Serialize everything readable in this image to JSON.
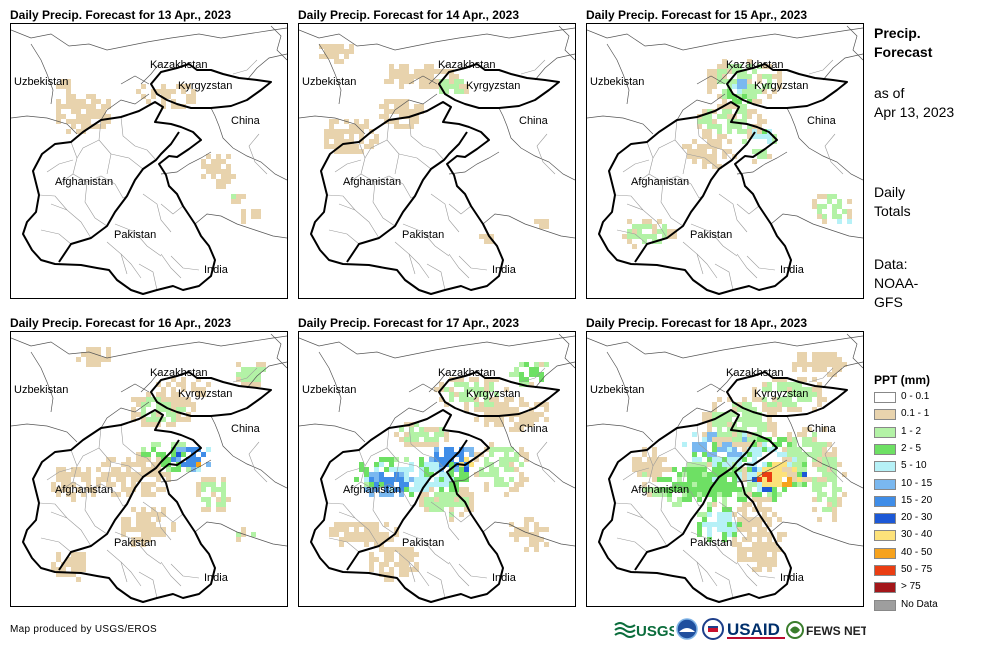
{
  "panels": [
    {
      "title": "Daily Precip. Forecast for 13 Apr., 2023",
      "day": 0
    },
    {
      "title": "Daily Precip. Forecast for 14 Apr., 2023",
      "day": 1
    },
    {
      "title": "Daily Precip. Forecast for 15 Apr., 2023",
      "day": 2
    },
    {
      "title": "Daily Precip. Forecast for 16 Apr., 2023",
      "day": 3
    },
    {
      "title": "Daily Precip. Forecast for 17 Apr., 2023",
      "day": 4
    },
    {
      "title": "Daily Precip. Forecast for 18 Apr., 2023",
      "day": 5
    }
  ],
  "map_labels": {
    "kazakhstan": "Kazakhstan",
    "uzbekistan": "Uzbekistan",
    "kyrgyzstan": "Kyrgyzstan",
    "china": "China",
    "afghanistan": "Afghanistan",
    "pakistan": "Pakistan",
    "india": "India"
  },
  "sidebar": {
    "title_line1": "Precip.",
    "title_line2": "Forecast",
    "asof_line1": "as of",
    "asof_line2": "Apr 13, 2023",
    "daily_line1": "Daily",
    "daily_line2": "Totals",
    "data_line1": "Data:",
    "data_line2": "NOAA-",
    "data_line3": "GFS"
  },
  "legend": {
    "title": "PPT (mm)",
    "items": [
      {
        "label": "0 - 0.1",
        "color": "#ffffff"
      },
      {
        "label": "0.1 - 1",
        "color": "#e8d3ad"
      },
      {
        "label": "1 - 2",
        "color": "#b3f2a6"
      },
      {
        "label": "2 - 5",
        "color": "#6ee064"
      },
      {
        "label": "5 - 10",
        "color": "#b6f1f7"
      },
      {
        "label": "10 - 15",
        "color": "#7ab8f0"
      },
      {
        "label": "15 - 20",
        "color": "#3f8de8"
      },
      {
        "label": "20 - 30",
        "color": "#1c58d6"
      },
      {
        "label": "30 - 40",
        "color": "#fde27a"
      },
      {
        "label": "40 - 50",
        "color": "#f7a21c"
      },
      {
        "label": "50 - 75",
        "color": "#ea3d12"
      },
      {
        "label": "> 75",
        "color": "#a3161a"
      },
      {
        "label": "No Data",
        "color": "#9e9e9e"
      }
    ]
  },
  "credit": "Map produced by USGS/EROS",
  "logos": {
    "usgs": "USGS",
    "usaid": "USAID",
    "fewsnet": "FEWS NET"
  }
}
